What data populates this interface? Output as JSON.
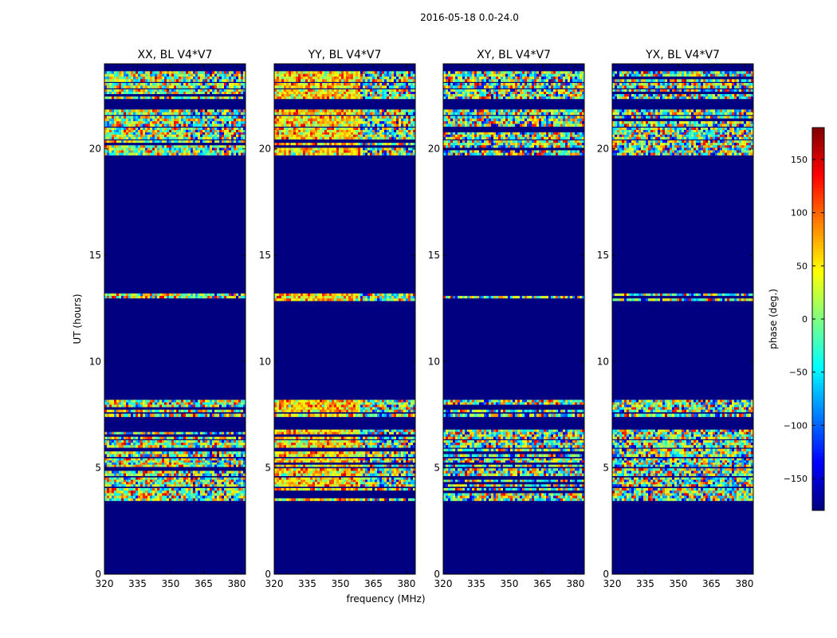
{
  "figure": {
    "suptitle": "2016-05-18 0.0-24.0",
    "xlabel": "frequency (MHz)",
    "ylabel": "UT (hours)",
    "colorbar_label": "phase (deg.)"
  },
  "colors": {
    "background_fill": "#00007f",
    "axes_edge": "#000000"
  },
  "chart_data": {
    "type": "heatmap",
    "title": "2016-05-18 0.0-24.0",
    "xlabel": "frequency (MHz)",
    "ylabel": "UT (hours)",
    "xlim": [
      320,
      384
    ],
    "ylim": [
      0,
      24
    ],
    "xticks": [
      "320",
      "335",
      "350",
      "365",
      "380"
    ],
    "xtick_values": [
      320,
      335,
      350,
      365,
      380
    ],
    "yticks": [
      "0",
      "5",
      "10",
      "15",
      "20"
    ],
    "ytick_values": [
      0,
      5,
      10,
      15,
      20
    ],
    "colormap": "jet",
    "colorbar": {
      "label": "phase (deg.)",
      "range": [
        -180,
        180
      ],
      "ticks": [
        "150",
        "100",
        "50",
        "0",
        "−50",
        "−100",
        "−150"
      ],
      "tick_values": [
        150,
        100,
        50,
        0,
        -50,
        -100,
        -150
      ]
    },
    "panels": [
      {
        "title": "XX, BL V4*V7",
        "warm_bias": 0.15
      },
      {
        "title": "YY, BL V4*V7",
        "warm_bias": 0.55
      },
      {
        "title": "XY, BL V4*V7",
        "warm_bias": 0.0
      },
      {
        "title": "YX, BL V4*V7",
        "warm_bias": 0.0
      }
    ],
    "data_bands_hours": [
      [
        3.45,
        4.05
      ],
      [
        4.12,
        4.55
      ],
      [
        4.62,
        4.98
      ],
      [
        5.05,
        5.45
      ],
      [
        5.52,
        5.9
      ],
      [
        5.95,
        6.3
      ],
      [
        6.35,
        6.8
      ],
      [
        7.4,
        7.55
      ],
      [
        7.62,
        8.2
      ],
      [
        12.85,
        13.2
      ],
      [
        19.7,
        20.4
      ],
      [
        20.45,
        21.0
      ],
      [
        21.05,
        21.55
      ],
      [
        21.6,
        21.85
      ],
      [
        22.35,
        22.8
      ],
      [
        22.85,
        23.1
      ],
      [
        23.15,
        23.65
      ]
    ],
    "gap_value": -180
  }
}
